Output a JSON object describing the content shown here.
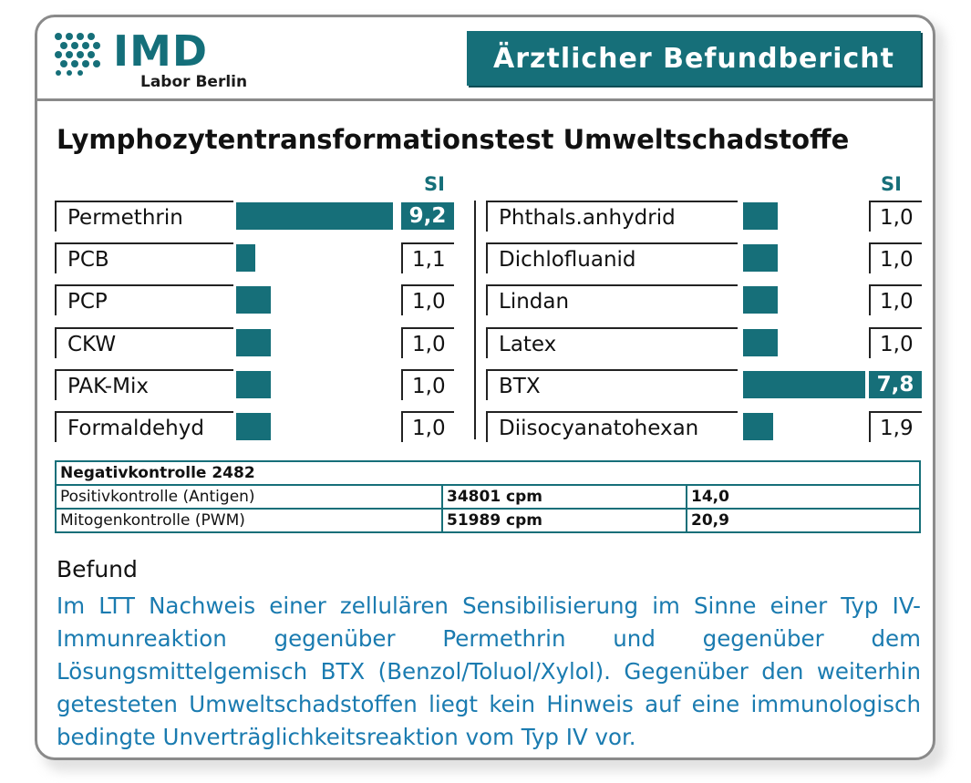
{
  "logo": {
    "name": "IMD",
    "subtitle": "Labor Berlin"
  },
  "report_title": "Ärztlicher Befundbericht",
  "section_title": "Lymphozytentransformationstest Umweltschadstoffe",
  "si_label": "SI",
  "left_rows": [
    {
      "label": "Permethrin",
      "value": "9,2",
      "si": 9.2,
      "highlight": true
    },
    {
      "label": "PCB",
      "value": "1,1",
      "si": 1.1,
      "highlight": false
    },
    {
      "label": "PCP",
      "value": "1,0",
      "si": 1.0,
      "highlight": false
    },
    {
      "label": "CKW",
      "value": "1,0",
      "si": 1.0,
      "highlight": false
    },
    {
      "label": "PAK-Mix",
      "value": "1,0",
      "si": 1.0,
      "highlight": false
    },
    {
      "label": "Formaldehyd",
      "value": "1,0",
      "si": 1.0,
      "highlight": false
    }
  ],
  "right_rows": [
    {
      "label": "Phthals.anhydrid",
      "value": "1,0",
      "si": 1.0,
      "highlight": false
    },
    {
      "label": "Dichlofluanid",
      "value": "1,0",
      "si": 1.0,
      "highlight": false
    },
    {
      "label": "Lindan",
      "value": "1,0",
      "si": 1.0,
      "highlight": false
    },
    {
      "label": "Latex",
      "value": "1,0",
      "si": 1.0,
      "highlight": false
    },
    {
      "label": "BTX",
      "value": "7,8",
      "si": 7.8,
      "highlight": true
    },
    {
      "label": "Diisocyanatohexan",
      "value": "1,9",
      "si": 1.9,
      "highlight": false
    }
  ],
  "controls": {
    "negative": "Negativkontrolle 2482",
    "rows": [
      {
        "name": "Positivkontrolle (Antigen)",
        "cpm": "34801 cpm",
        "si": "14,0"
      },
      {
        "name": "Mitogenkontrolle (PWM)",
        "cpm": "51989 cpm",
        "si": "20,9"
      }
    ]
  },
  "befund": {
    "label": "Befund",
    "text": "Im LTT Nachweis einer zellulären Sensibilisierung im Sinne einer Typ IV-Immunreaktion gegenüber Permethrin und gegenüber dem Lösungsmittelgemisch BTX (Benzol/Toluol/Xylol). Gegenüber den weiterhin getesteten Umweltschadstoffen liegt kein Hinweis auf eine immunologisch bedingte Unverträglichkeitsreaktion vom Typ IV vor."
  },
  "colors": {
    "brand": "#166f79",
    "befund_text": "#1a7bb0"
  }
}
